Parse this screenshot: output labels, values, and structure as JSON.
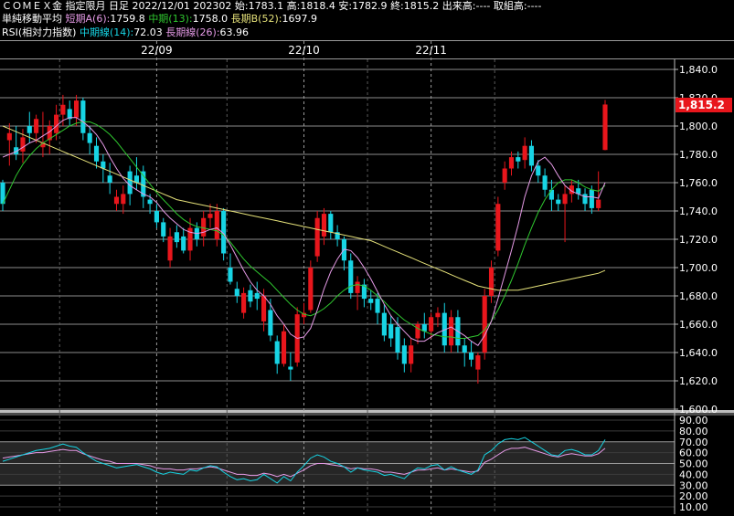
{
  "header": {
    "line1": {
      "instrument": "ＣＯＭＥＸ金 指定限月 日足",
      "date": "2022/12/01",
      "contract": "202302",
      "open_label": "始:",
      "open": "1783.1",
      "high_label": "高:",
      "high": "1818.4",
      "low_label": "安:",
      "low": "1782.9",
      "close_label": "終:",
      "close": "1815.2",
      "volume_label": "出来高:",
      "volume": "----",
      "oi_label": "取組高:",
      "oi": "----"
    },
    "line2": {
      "label": "単純移動平均",
      "short_label": "短期A(6):",
      "short": "1759.8",
      "mid_label": "中期(13):",
      "mid": "1758.0",
      "long_label": "長期B(52):",
      "long": "1697.9"
    },
    "line3": {
      "label": "RSI(相対力指数)",
      "mid_label": "中期線(14):",
      "mid": "72.03",
      "long_label": "長期線(26):",
      "long": "63.96"
    }
  },
  "colors": {
    "up": "#e8161c",
    "down": "#17d4e4",
    "ma_short": "#e59ae6",
    "ma_mid": "#2fc72f",
    "ma_long": "#e6e27a",
    "rsi_mid": "#17d4e4",
    "rsi_long": "#e59ae6"
  },
  "price_tag": "1,815.2",
  "chart_data": {
    "type": "candlestick",
    "date_labels": [
      {
        "label": "22/09",
        "index": 23
      },
      {
        "label": "22/10",
        "index": 45
      },
      {
        "label": "22/11",
        "index": 64
      }
    ],
    "price_axis": {
      "ylim": [
        1600,
        1840
      ],
      "ticks": [
        "1,840.0",
        "1,820.0",
        "1,800.0",
        "1,780.0",
        "1,760.0",
        "1,740.0",
        "1,720.0",
        "1,700.0",
        "1,680.0",
        "1,660.0",
        "1,640.0",
        "1,620.0",
        "1,600.0"
      ]
    },
    "rsi_axis": {
      "ylim": [
        10,
        90
      ],
      "ticks": [
        "90.00",
        "80.00",
        "70.00",
        "60.00",
        "50.00",
        "40.00",
        "30.00",
        "20.00",
        "10.00"
      ]
    },
    "candles": [
      [
        1760,
        1762,
        1740,
        1745
      ],
      [
        1790,
        1802,
        1772,
        1795
      ],
      [
        1785,
        1800,
        1776,
        1780
      ],
      [
        1782,
        1798,
        1774,
        1792
      ],
      [
        1800,
        1810,
        1788,
        1795
      ],
      [
        1795,
        1808,
        1788,
        1805
      ],
      [
        1785,
        1810,
        1778,
        1788
      ],
      [
        1790,
        1804,
        1780,
        1800
      ],
      [
        1795,
        1815,
        1790,
        1808
      ],
      [
        1808,
        1822,
        1800,
        1815
      ],
      [
        1812,
        1818,
        1800,
        1805
      ],
      [
        1806,
        1822,
        1800,
        1818
      ],
      [
        1818,
        1820,
        1790,
        1795
      ],
      [
        1795,
        1800,
        1780,
        1788
      ],
      [
        1786,
        1792,
        1770,
        1775
      ],
      [
        1775,
        1780,
        1760,
        1770
      ],
      [
        1765,
        1774,
        1752,
        1760
      ],
      [
        1745,
        1755,
        1740,
        1750
      ],
      [
        1745,
        1758,
        1738,
        1752
      ],
      [
        1768,
        1772,
        1744,
        1752
      ],
      [
        1765,
        1778,
        1755,
        1760
      ],
      [
        1768,
        1772,
        1742,
        1750
      ],
      [
        1748,
        1752,
        1738,
        1745
      ],
      [
        1740,
        1745,
        1728,
        1732
      ],
      [
        1732,
        1735,
        1718,
        1722
      ],
      [
        1705,
        1728,
        1700,
        1722
      ],
      [
        1725,
        1730,
        1714,
        1718
      ],
      [
        1722,
        1728,
        1710,
        1712
      ],
      [
        1712,
        1735,
        1705,
        1728
      ],
      [
        1728,
        1732,
        1715,
        1720
      ],
      [
        1722,
        1740,
        1715,
        1735
      ],
      [
        1735,
        1745,
        1728,
        1738
      ],
      [
        1720,
        1745,
        1715,
        1740
      ],
      [
        1740,
        1742,
        1705,
        1710
      ],
      [
        1700,
        1710,
        1688,
        1690
      ],
      [
        1685,
        1690,
        1675,
        1680
      ],
      [
        1668,
        1686,
        1664,
        1682
      ],
      [
        1684,
        1688,
        1672,
        1676
      ],
      [
        1682,
        1690,
        1670,
        1678
      ],
      [
        1662,
        1685,
        1655,
        1680
      ],
      [
        1670,
        1678,
        1648,
        1652
      ],
      [
        1648,
        1652,
        1625,
        1632
      ],
      [
        1632,
        1660,
        1630,
        1655
      ],
      [
        1630,
        1640,
        1620,
        1628
      ],
      [
        1633,
        1672,
        1630,
        1667
      ],
      [
        1665,
        1675,
        1660,
        1668
      ],
      [
        1670,
        1705,
        1668,
        1700
      ],
      [
        1708,
        1740,
        1704,
        1735
      ],
      [
        1722,
        1742,
        1716,
        1738
      ],
      [
        1738,
        1740,
        1720,
        1725
      ],
      [
        1725,
        1730,
        1715,
        1720
      ],
      [
        1720,
        1722,
        1698,
        1705
      ],
      [
        1705,
        1710,
        1678,
        1682
      ],
      [
        1682,
        1694,
        1670,
        1690
      ],
      [
        1688,
        1692,
        1672,
        1678
      ],
      [
        1678,
        1684,
        1670,
        1675
      ],
      [
        1678,
        1682,
        1660,
        1668
      ],
      [
        1668,
        1674,
        1648,
        1652
      ],
      [
        1660,
        1666,
        1644,
        1650
      ],
      [
        1658,
        1665,
        1635,
        1640
      ],
      [
        1645,
        1650,
        1626,
        1632
      ],
      [
        1632,
        1650,
        1626,
        1645
      ],
      [
        1650,
        1662,
        1646,
        1660
      ],
      [
        1660,
        1668,
        1650,
        1655
      ],
      [
        1655,
        1668,
        1650,
        1665
      ],
      [
        1665,
        1672,
        1658,
        1668
      ],
      [
        1668,
        1675,
        1640,
        1645
      ],
      [
        1645,
        1670,
        1640,
        1665
      ],
      [
        1665,
        1670,
        1640,
        1645
      ],
      [
        1645,
        1650,
        1630,
        1640
      ],
      [
        1640,
        1648,
        1630,
        1635
      ],
      [
        1628,
        1640,
        1618,
        1638
      ],
      [
        1640,
        1685,
        1635,
        1680
      ],
      [
        1680,
        1705,
        1675,
        1700
      ],
      [
        1712,
        1750,
        1708,
        1745
      ],
      [
        1760,
        1775,
        1755,
        1770
      ],
      [
        1770,
        1782,
        1765,
        1778
      ],
      [
        1778,
        1782,
        1770,
        1775
      ],
      [
        1776,
        1792,
        1770,
        1786
      ],
      [
        1786,
        1790,
        1768,
        1772
      ],
      [
        1772,
        1776,
        1760,
        1765
      ],
      [
        1765,
        1770,
        1750,
        1755
      ],
      [
        1755,
        1762,
        1740,
        1748
      ],
      [
        1748,
        1752,
        1740,
        1745
      ],
      [
        1745,
        1758,
        1718,
        1752
      ],
      [
        1752,
        1762,
        1746,
        1758
      ],
      [
        1756,
        1762,
        1748,
        1752
      ],
      [
        1752,
        1756,
        1740,
        1745
      ],
      [
        1755,
        1758,
        1738,
        1742
      ],
      [
        1742,
        1768,
        1740,
        1748
      ],
      [
        1783.1,
        1818.4,
        1782.9,
        1815.2
      ]
    ],
    "ma_short": [
      1778,
      1780,
      1782,
      1785,
      1788,
      1790,
      1793,
      1796,
      1800,
      1804,
      1806,
      1806,
      1803,
      1799,
      1794,
      1787,
      1778,
      1770,
      1763,
      1758,
      1755,
      1752,
      1750,
      1746,
      1740,
      1735,
      1731,
      1727,
      1725,
      1724,
      1725,
      1727,
      1728,
      1724,
      1716,
      1707,
      1698,
      1690,
      1684,
      1680,
      1674,
      1666,
      1660,
      1653,
      1650,
      1651,
      1657,
      1670,
      1685,
      1697,
      1706,
      1713,
      1712,
      1707,
      1700,
      1692,
      1683,
      1674,
      1666,
      1660,
      1655,
      1650,
      1648,
      1648,
      1651,
      1654,
      1656,
      1658,
      1655,
      1652,
      1648,
      1645,
      1652,
      1662,
      1678,
      1695,
      1712,
      1730,
      1750,
      1765,
      1775,
      1778,
      1773,
      1765,
      1758,
      1754,
      1752,
      1750,
      1750,
      1749,
      1760
    ],
    "ma_mid": [
      1745,
      1755,
      1765,
      1773,
      1779,
      1784,
      1788,
      1791,
      1794,
      1797,
      1800,
      1802,
      1803,
      1803,
      1801,
      1798,
      1794,
      1789,
      1783,
      1777,
      1771,
      1765,
      1759,
      1753,
      1748,
      1743,
      1738,
      1734,
      1731,
      1729,
      1728,
      1727,
      1726,
      1723,
      1718,
      1712,
      1706,
      1701,
      1697,
      1693,
      1689,
      1684,
      1679,
      1674,
      1670,
      1667,
      1666,
      1668,
      1671,
      1675,
      1680,
      1684,
      1687,
      1688,
      1687,
      1684,
      1680,
      1676,
      1671,
      1667,
      1663,
      1660,
      1657,
      1655,
      1653,
      1652,
      1651,
      1651,
      1650,
      1650,
      1651,
      1652,
      1656,
      1662,
      1670,
      1680,
      1691,
      1703,
      1716,
      1728,
      1739,
      1748,
      1755,
      1760,
      1762,
      1762,
      1760,
      1757,
      1755,
      1754,
      1758
    ],
    "ma_long": [
      1800,
      1798,
      1796,
      1794,
      1792,
      1790,
      1788,
      1786,
      1784,
      1782,
      1780,
      1778,
      1776,
      1774,
      1772,
      1770,
      1768,
      1766,
      1764,
      1762,
      1760,
      1758,
      1756,
      1754,
      1752,
      1750,
      1748,
      1747,
      1746,
      1745,
      1744,
      1743,
      1742,
      1741,
      1740,
      1739,
      1738,
      1737,
      1736,
      1735,
      1734,
      1733,
      1732,
      1731,
      1730,
      1729,
      1728,
      1727,
      1726,
      1725,
      1724,
      1723,
      1722,
      1721,
      1720,
      1719,
      1717,
      1715,
      1713,
      1711,
      1709,
      1707,
      1705,
      1703,
      1701,
      1699,
      1697,
      1695,
      1693,
      1691,
      1689,
      1687,
      1686,
      1685,
      1684,
      1684,
      1684,
      1684,
      1685,
      1686,
      1687,
      1688,
      1689,
      1690,
      1691,
      1692,
      1693,
      1694,
      1695,
      1696,
      1698
    ],
    "rsi_mid": [
      52,
      54,
      56,
      58,
      60,
      62,
      63,
      64,
      66,
      68,
      66,
      65,
      60,
      56,
      52,
      50,
      48,
      46,
      47,
      48,
      49,
      47,
      45,
      42,
      40,
      42,
      41,
      40,
      44,
      43,
      46,
      48,
      47,
      42,
      38,
      35,
      36,
      34,
      35,
      40,
      36,
      32,
      38,
      34,
      42,
      48,
      55,
      58,
      56,
      52,
      50,
      47,
      42,
      46,
      44,
      43,
      42,
      39,
      40,
      38,
      36,
      42,
      46,
      45,
      48,
      49,
      44,
      47,
      44,
      42,
      40,
      44,
      58,
      62,
      68,
      72,
      73,
      72,
      74,
      70,
      66,
      62,
      58,
      57,
      62,
      63,
      61,
      58,
      58,
      62,
      72
    ],
    "rsi_long": [
      55,
      56,
      57,
      58,
      59,
      60,
      60,
      61,
      62,
      63,
      62,
      62,
      59,
      57,
      55,
      53,
      52,
      50,
      50,
      50,
      50,
      49,
      48,
      46,
      45,
      45,
      44,
      44,
      45,
      45,
      46,
      47,
      46,
      44,
      42,
      40,
      40,
      39,
      39,
      41,
      40,
      38,
      40,
      38,
      41,
      44,
      48,
      50,
      50,
      49,
      48,
      47,
      45,
      46,
      45,
      45,
      44,
      42,
      42,
      41,
      40,
      42,
      44,
      44,
      45,
      46,
      44,
      45,
      44,
      43,
      42,
      43,
      51,
      54,
      58,
      62,
      64,
      64,
      65,
      63,
      61,
      59,
      57,
      56,
      58,
      59,
      58,
      57,
      57,
      59,
      64
    ]
  }
}
